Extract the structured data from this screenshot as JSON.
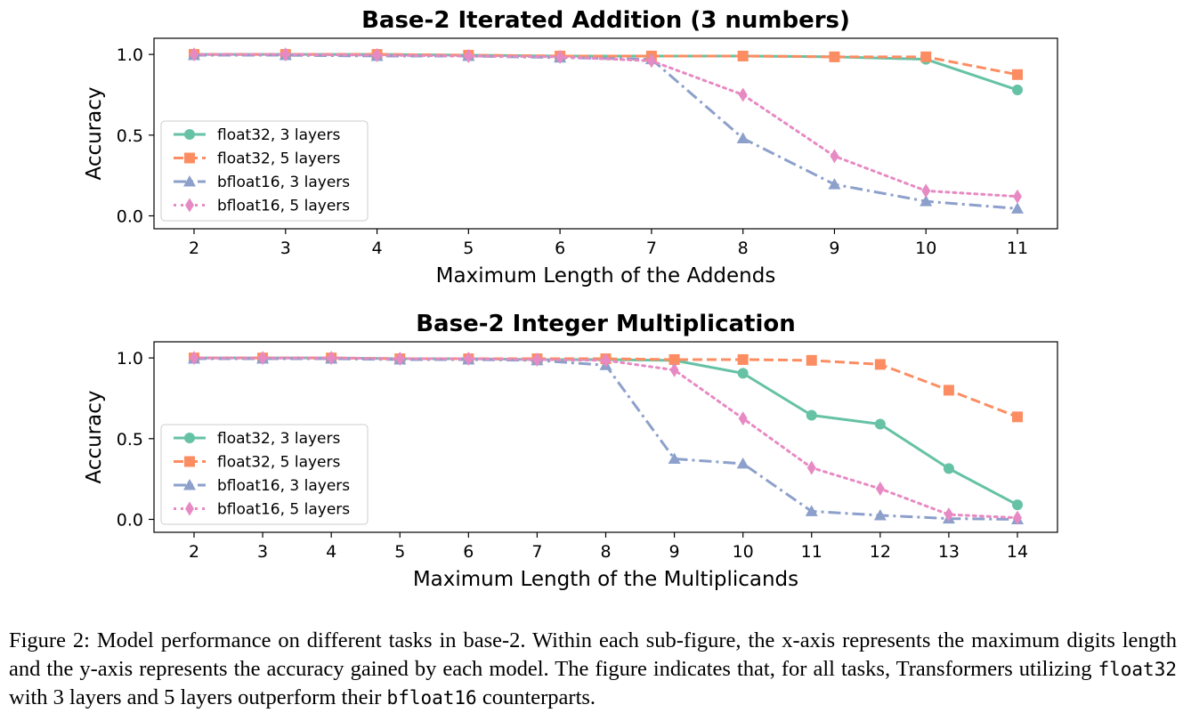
{
  "colors": {
    "float32_3": "#66c2a5",
    "float32_5": "#fc8d62",
    "bfloat16_3": "#8da0cb",
    "bfloat16_5": "#e78ac3"
  },
  "chart_data": [
    {
      "type": "line",
      "title": "Base-2 Iterated Addition (3 numbers)",
      "xlabel": "Maximum Length of the Addends",
      "ylabel": "Accuracy",
      "x": [
        2,
        3,
        4,
        5,
        6,
        7,
        8,
        9,
        10,
        11
      ],
      "yticks": [
        "0.0",
        "0.5",
        "1.0"
      ],
      "ylim": [
        -0.08,
        1.1
      ],
      "legend_position": "center-left",
      "series": [
        {
          "name": "float32, 3 layers",
          "style": "solid",
          "marker": "circle",
          "color": "#66c2a5",
          "values": [
            1.0,
            1.0,
            1.0,
            0.995,
            0.99,
            0.99,
            0.99,
            0.985,
            0.97,
            0.78
          ]
        },
        {
          "name": "float32, 5 layers",
          "style": "dashed",
          "marker": "square",
          "color": "#fc8d62",
          "values": [
            1.0,
            1.0,
            1.0,
            0.995,
            0.99,
            0.99,
            0.99,
            0.985,
            0.985,
            0.875
          ]
        },
        {
          "name": "bfloat16, 3 layers",
          "style": "dashdot",
          "marker": "triangle",
          "color": "#8da0cb",
          "values": [
            0.995,
            0.995,
            0.99,
            0.99,
            0.98,
            0.97,
            0.48,
            0.195,
            0.09,
            0.045
          ]
        },
        {
          "name": "bfloat16, 5 layers",
          "style": "dotted",
          "marker": "diamond",
          "color": "#e78ac3",
          "values": [
            1.0,
            1.0,
            0.995,
            0.99,
            0.985,
            0.96,
            0.75,
            0.37,
            0.155,
            0.12
          ]
        }
      ]
    },
    {
      "type": "line",
      "title": "Base-2 Integer Multiplication",
      "xlabel": "Maximum Length of the Multiplicands",
      "ylabel": "Accuracy",
      "x": [
        2,
        3,
        4,
        5,
        6,
        7,
        8,
        9,
        10,
        11,
        12,
        13,
        14
      ],
      "yticks": [
        "0.0",
        "0.5",
        "1.0"
      ],
      "ylim": [
        -0.08,
        1.1
      ],
      "legend_position": "center-left",
      "series": [
        {
          "name": "float32, 3 layers",
          "style": "solid",
          "marker": "circle",
          "color": "#66c2a5",
          "values": [
            1.0,
            1.0,
            1.0,
            0.995,
            0.995,
            0.99,
            0.99,
            0.985,
            0.905,
            0.645,
            0.59,
            0.315,
            0.09
          ]
        },
        {
          "name": "float32, 5 layers",
          "style": "dashed",
          "marker": "square",
          "color": "#fc8d62",
          "values": [
            1.0,
            1.0,
            1.0,
            0.995,
            0.995,
            0.995,
            0.995,
            0.99,
            0.99,
            0.985,
            0.96,
            0.8,
            0.635
          ]
        },
        {
          "name": "bfloat16, 3 layers",
          "style": "dashdot",
          "marker": "triangle",
          "color": "#8da0cb",
          "values": [
            0.995,
            0.995,
            0.995,
            0.99,
            0.99,
            0.985,
            0.955,
            0.375,
            0.345,
            0.05,
            0.025,
            0.005,
            0.0
          ]
        },
        {
          "name": "bfloat16, 5 layers",
          "style": "dotted",
          "marker": "diamond",
          "color": "#e78ac3",
          "values": [
            1.0,
            1.0,
            1.0,
            0.995,
            0.995,
            0.99,
            0.985,
            0.925,
            0.625,
            0.32,
            0.19,
            0.03,
            0.01
          ]
        }
      ]
    }
  ],
  "caption": {
    "part1": "Figure 2: Model performance on different tasks in base-2. Within each sub-figure, the x-axis represents the maximum digits length and the y-axis represents the accuracy gained by each model. The figure indicates that, for all tasks, Transformers utilizing ",
    "code1": "float32",
    "part2": " with 3 layers and 5 layers outperform their ",
    "code2": "bfloat16",
    "part3": " counterparts."
  }
}
